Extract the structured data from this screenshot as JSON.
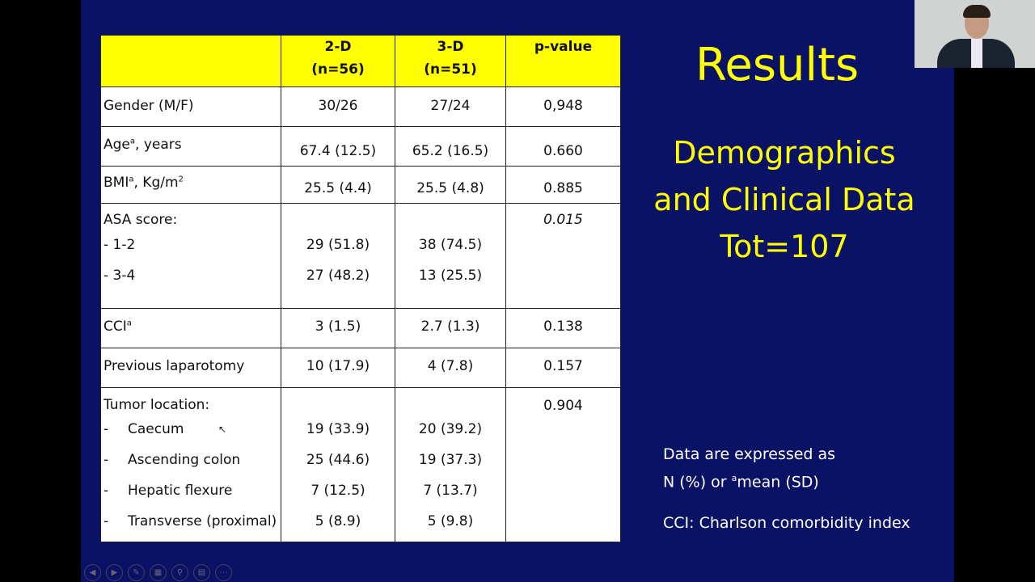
{
  "table": {
    "headers": [
      "",
      "2-D\n(n=56)",
      "3-D\n(n=51)",
      "p-value"
    ],
    "header_lines": [
      [
        "",
        ""
      ],
      [
        "2-D",
        "(n=56)"
      ],
      [
        "3-D",
        "(n=51)"
      ],
      [
        "p-value",
        ""
      ]
    ],
    "gender": {
      "label": "Gender (M/F)",
      "v2d": "30/26",
      "v3d": "27/24",
      "p": "0,948"
    },
    "age": {
      "label": "Age",
      "sup": "a",
      "suffix": ", years",
      "v2d": "67.4 (12.5)",
      "v3d": "65.2 (16.5)",
      "p": "0.660"
    },
    "bmi": {
      "label": "BMI",
      "sup": "a",
      "suffix": ", Kg/m",
      "sup2": "2",
      "v2d": "25.5 (4.4)",
      "v3d": "25.5 (4.8)",
      "p": "0.885"
    },
    "asa": {
      "label": "ASA score:",
      "p": "0.015",
      "rows": [
        {
          "label": "- 1-2",
          "v2d": "29 (51.8)",
          "v3d": "38 (74.5)"
        },
        {
          "label": "- 3-4",
          "v2d": "27 (48.2)",
          "v3d": "13 (25.5)"
        }
      ]
    },
    "cci": {
      "label": "CCI",
      "sup": "a",
      "v2d": "3 (1.5)",
      "v3d": "2.7 (1.3)",
      "p": "0.138"
    },
    "laparotomy": {
      "label": "Previous laparotomy",
      "v2d": "10 (17.9)",
      "v3d": "4 (7.8)",
      "p": "0.157"
    },
    "tumor": {
      "label": "Tumor location:",
      "p": "0.904",
      "rows": [
        {
          "label": "Caecum",
          "v2d": "19 (33.9)",
          "v3d": "20 (39.2)"
        },
        {
          "label": "Ascending colon",
          "v2d": "25 (44.6)",
          "v3d": "19 (37.3)"
        },
        {
          "label": "Hepatic flexure",
          "v2d": "7 (12.5)",
          "v3d": "7 (13.7)"
        },
        {
          "label": "Transverse (proximal)",
          "v2d": "5 (8.9)",
          "v3d": "5 (9.8)"
        }
      ]
    }
  },
  "title": "Results",
  "subtitle": [
    "Demographics",
    "and Clinical Data",
    "Tot=107"
  ],
  "notes": {
    "line1": "Data are expressed as",
    "line2_a": "N (%) or ",
    "line2_sup": "a",
    "line2_b": "mean (SD)",
    "cci_def": "CCI: Charlson comorbidity index"
  },
  "colors": {
    "slide_bg": "#0a1266",
    "accent": "#ffff00",
    "header_bg": "#ffff00"
  }
}
